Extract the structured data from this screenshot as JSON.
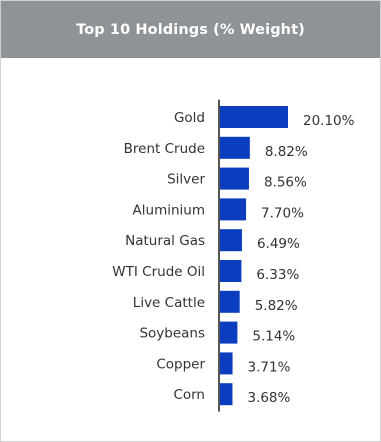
{
  "card": {
    "title": "Top 10 Holdings (% Weight)"
  },
  "colors": {
    "header_bg": "#8e9397",
    "bar": "#0a3ebf",
    "axis": "#555555"
  },
  "chart_data": {
    "type": "bar",
    "orientation": "horizontal",
    "title": "Top 10 Holdings (% Weight)",
    "categories": [
      "Gold",
      "Brent Crude",
      "Silver",
      "Aluminium",
      "Natural Gas",
      "WTI Crude Oil",
      "Live Cattle",
      "Soybeans",
      "Copper",
      "Corn"
    ],
    "values": [
      20.1,
      8.82,
      8.56,
      7.7,
      6.49,
      6.33,
      5.82,
      5.14,
      3.71,
      3.68
    ],
    "value_labels": [
      "20.10%",
      "8.82%",
      "8.56%",
      "7.70%",
      "6.49%",
      "6.33%",
      "5.82%",
      "5.14%",
      "3.71%",
      "3.68%"
    ],
    "xlabel": "",
    "ylabel": "",
    "xlim": [
      0,
      20.1
    ],
    "grid": false,
    "legend": "none"
  }
}
